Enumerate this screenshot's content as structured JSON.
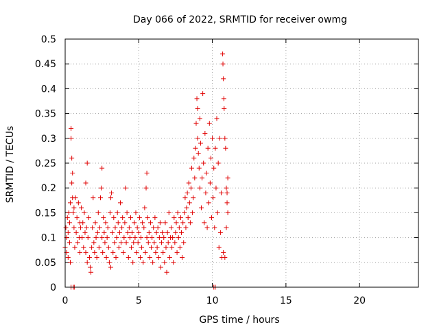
{
  "chart_data": {
    "type": "scatter",
    "title": "Day 066 of 2022, SRMTID for receiver owmg",
    "xlabel": "GPS time / hours",
    "ylabel": "SRMTID / TECUs",
    "xlim": [
      0,
      24
    ],
    "ylim": [
      0,
      0.5
    ],
    "xticks": [
      0,
      5,
      10,
      15,
      20
    ],
    "xtick_labels": [
      "0",
      "5",
      "10",
      "15",
      "20"
    ],
    "yticks": [
      0,
      0.05,
      0.1,
      0.15,
      0.2,
      0.25,
      0.3,
      0.35,
      0.4,
      0.45,
      0.5
    ],
    "ytick_labels": [
      "0",
      "0.05",
      "0.1",
      "0.15",
      "0.2",
      "0.25",
      "0.3",
      "0.35",
      "0.4",
      "0.45",
      "0.5"
    ],
    "grid": true,
    "marker": "plus",
    "color": "#e00000",
    "series": [
      {
        "points": [
          [
            0.0,
            0.08
          ],
          [
            0.05,
            0.12
          ],
          [
            0.1,
            0.1
          ],
          [
            0.1,
            0.07
          ],
          [
            0.15,
            0.14
          ],
          [
            0.2,
            0.11
          ],
          [
            0.2,
            0.06
          ],
          [
            0.25,
            0.15
          ],
          [
            0.3,
            0.09
          ],
          [
            0.3,
            0.13
          ],
          [
            0.35,
            0.17
          ],
          [
            0.35,
            0.05
          ],
          [
            0.4,
            0.32
          ],
          [
            0.4,
            0.3
          ],
          [
            0.45,
            0.26
          ],
          [
            0.45,
            0.21
          ],
          [
            0.5,
            0.23
          ],
          [
            0.5,
            0.18
          ],
          [
            0.55,
            0.15
          ],
          [
            0.6,
            0.12
          ],
          [
            0.6,
            0.16
          ],
          [
            0.65,
            0.08
          ],
          [
            0.7,
            0.18
          ],
          [
            0.75,
            0.11
          ],
          [
            0.8,
            0.14
          ],
          [
            0.85,
            0.09
          ],
          [
            0.9,
            0.17
          ],
          [
            0.95,
            0.1
          ],
          [
            1.0,
            0.13
          ],
          [
            1.0,
            0.07
          ],
          [
            1.05,
            0.12
          ],
          [
            1.1,
            0.16
          ],
          [
            1.15,
            0.1
          ],
          [
            1.2,
            0.13
          ],
          [
            1.25,
            0.08
          ],
          [
            1.3,
            0.15
          ],
          [
            1.35,
            0.11
          ],
          [
            1.4,
            0.21
          ],
          [
            1.4,
            0.07
          ],
          [
            1.45,
            0.12
          ],
          [
            1.5,
            0.25
          ],
          [
            1.5,
            0.05
          ],
          [
            1.55,
            0.1
          ],
          [
            1.6,
            0.14
          ],
          [
            1.65,
            0.06
          ],
          [
            1.7,
            0.04
          ],
          [
            1.75,
            0.03
          ],
          [
            1.8,
            0.08
          ],
          [
            1.85,
            0.12
          ],
          [
            1.9,
            0.18
          ],
          [
            1.95,
            0.09
          ],
          [
            2.0,
            0.07
          ],
          [
            2.05,
            0.13
          ],
          [
            2.1,
            0.1
          ],
          [
            2.15,
            0.06
          ],
          [
            2.2,
            0.11
          ],
          [
            2.25,
            0.15
          ],
          [
            2.3,
            0.08
          ],
          [
            2.35,
            0.12
          ],
          [
            2.4,
            0.18
          ],
          [
            2.45,
            0.2
          ],
          [
            2.5,
            0.24
          ],
          [
            2.5,
            0.1
          ],
          [
            2.55,
            0.07
          ],
          [
            2.6,
            0.14
          ],
          [
            2.65,
            0.11
          ],
          [
            2.7,
            0.09
          ],
          [
            2.75,
            0.13
          ],
          [
            2.8,
            0.06
          ],
          [
            2.85,
            0.1
          ],
          [
            2.9,
            0.12
          ],
          [
            2.95,
            0.08
          ],
          [
            3.0,
            0.05
          ],
          [
            3.05,
            0.15
          ],
          [
            3.1,
            0.18
          ],
          [
            3.1,
            0.04
          ],
          [
            3.15,
            0.19
          ],
          [
            3.2,
            0.11
          ],
          [
            3.25,
            0.07
          ],
          [
            3.3,
            0.14
          ],
          [
            3.35,
            0.09
          ],
          [
            3.4,
            0.12
          ],
          [
            3.45,
            0.06
          ],
          [
            3.5,
            0.1
          ],
          [
            3.55,
            0.15
          ],
          [
            3.6,
            0.13
          ],
          [
            3.65,
            0.08
          ],
          [
            3.7,
            0.11
          ],
          [
            3.75,
            0.17
          ],
          [
            3.8,
            0.09
          ],
          [
            3.85,
            0.12
          ],
          [
            3.9,
            0.14
          ],
          [
            3.95,
            0.07
          ],
          [
            4.0,
            0.1
          ],
          [
            4.05,
            0.13
          ],
          [
            4.1,
            0.2
          ],
          [
            4.15,
            0.09
          ],
          [
            4.2,
            0.15
          ],
          [
            4.25,
            0.11
          ],
          [
            4.3,
            0.06
          ],
          [
            4.35,
            0.12
          ],
          [
            4.4,
            0.1
          ],
          [
            4.45,
            0.14
          ],
          [
            4.5,
            0.08
          ],
          [
            4.55,
            0.11
          ],
          [
            4.6,
            0.05
          ],
          [
            4.65,
            0.09
          ],
          [
            4.7,
            0.13
          ],
          [
            4.75,
            0.1
          ],
          [
            4.8,
            0.15
          ],
          [
            4.85,
            0.07
          ],
          [
            4.9,
            0.12
          ],
          [
            4.95,
            0.09
          ],
          [
            5.0,
            0.11
          ],
          [
            5.05,
            0.14
          ],
          [
            5.1,
            0.06
          ],
          [
            5.15,
            0.1
          ],
          [
            5.2,
            0.08
          ],
          [
            5.25,
            0.13
          ],
          [
            5.3,
            0.05
          ],
          [
            5.35,
            0.12
          ],
          [
            5.4,
            0.16
          ],
          [
            5.45,
            0.07
          ],
          [
            5.5,
            0.2
          ],
          [
            5.55,
            0.23
          ],
          [
            5.55,
            0.1
          ],
          [
            5.6,
            0.14
          ],
          [
            5.65,
            0.09
          ],
          [
            5.7,
            0.11
          ],
          [
            5.75,
            0.06
          ],
          [
            5.8,
            0.13
          ],
          [
            5.85,
            0.08
          ],
          [
            5.9,
            0.1
          ],
          [
            5.95,
            0.05
          ],
          [
            6.0,
            0.12
          ],
          [
            6.05,
            0.09
          ],
          [
            6.1,
            0.14
          ],
          [
            6.15,
            0.07
          ],
          [
            6.2,
            0.11
          ],
          [
            6.25,
            0.08
          ],
          [
            6.3,
            0.12
          ],
          [
            6.35,
            0.06
          ],
          [
            6.4,
            0.1
          ],
          [
            6.45,
            0.13
          ],
          [
            6.5,
            0.04
          ],
          [
            6.55,
            0.09
          ],
          [
            6.6,
            0.11
          ],
          [
            6.65,
            0.07
          ],
          [
            6.7,
            0.1
          ],
          [
            6.75,
            0.05
          ],
          [
            6.8,
            0.13
          ],
          [
            6.85,
            0.08
          ],
          [
            6.9,
            0.03
          ],
          [
            6.95,
            0.11
          ],
          [
            7.0,
            0.09
          ],
          [
            7.05,
            0.15
          ],
          [
            7.1,
            0.06
          ],
          [
            7.15,
            0.1
          ],
          [
            7.2,
            0.12
          ],
          [
            7.25,
            0.08
          ],
          [
            7.3,
            0.1
          ],
          [
            7.35,
            0.05
          ],
          [
            7.4,
            0.14
          ],
          [
            7.45,
            0.09
          ],
          [
            7.5,
            0.11
          ],
          [
            7.55,
            0.13
          ],
          [
            7.6,
            0.07
          ],
          [
            7.65,
            0.15
          ],
          [
            7.7,
            0.1
          ],
          [
            7.75,
            0.12
          ],
          [
            7.8,
            0.08
          ],
          [
            7.85,
            0.14
          ],
          [
            7.9,
            0.11
          ],
          [
            7.95,
            0.06
          ],
          [
            8.0,
            0.13
          ],
          [
            8.05,
            0.09
          ],
          [
            8.1,
            0.15
          ],
          [
            8.15,
            0.18
          ],
          [
            8.2,
            0.12
          ],
          [
            8.25,
            0.16
          ],
          [
            8.3,
            0.19
          ],
          [
            8.35,
            0.14
          ],
          [
            8.4,
            0.21
          ],
          [
            8.45,
            0.17
          ],
          [
            8.5,
            0.13
          ],
          [
            8.55,
            0.2
          ],
          [
            8.6,
            0.24
          ],
          [
            8.65,
            0.15
          ],
          [
            8.7,
            0.18
          ],
          [
            8.75,
            0.26
          ],
          [
            8.8,
            0.22
          ],
          [
            8.85,
            0.28
          ],
          [
            8.9,
            0.33
          ],
          [
            8.95,
            0.38
          ],
          [
            9.0,
            0.3
          ],
          [
            9.0,
            0.36
          ],
          [
            9.05,
            0.27
          ],
          [
            9.1,
            0.24
          ],
          [
            9.15,
            0.34
          ],
          [
            9.15,
            0.2
          ],
          [
            9.2,
            0.29
          ],
          [
            9.25,
            0.16
          ],
          [
            9.3,
            0.22
          ],
          [
            9.35,
            0.39
          ],
          [
            9.4,
            0.25
          ],
          [
            9.45,
            0.13
          ],
          [
            9.5,
            0.31
          ],
          [
            9.55,
            0.19
          ],
          [
            9.6,
            0.23
          ],
          [
            9.65,
            0.12
          ],
          [
            9.7,
            0.28
          ],
          [
            9.75,
            0.17
          ],
          [
            9.8,
            0.33
          ],
          [
            9.85,
            0.21
          ],
          [
            9.9,
            0.26
          ],
          [
            9.95,
            0.14
          ],
          [
            10.0,
            0.3
          ],
          [
            10.05,
            0.18
          ],
          [
            10.1,
            0.24
          ],
          [
            10.15,
            0.12
          ],
          [
            10.2,
            0.28
          ],
          [
            10.25,
            0.2
          ],
          [
            10.3,
            0.34
          ],
          [
            10.35,
            0.15
          ],
          [
            10.4,
            0.25
          ],
          [
            10.45,
            0.08
          ],
          [
            10.5,
            0.3
          ],
          [
            10.55,
            0.11
          ],
          [
            10.6,
            0.19
          ],
          [
            10.65,
            0.06
          ],
          [
            10.7,
            0.47
          ],
          [
            10.72,
            0.45
          ],
          [
            10.75,
            0.42
          ],
          [
            10.78,
            0.38
          ],
          [
            10.8,
            0.36
          ],
          [
            10.85,
            0.3
          ],
          [
            10.9,
            0.28
          ],
          [
            10.95,
            0.2
          ],
          [
            11.0,
            0.17
          ],
          [
            11.05,
            0.15
          ],
          [
            10.75,
            0.07
          ],
          [
            10.85,
            0.06
          ],
          [
            10.95,
            0.12
          ],
          [
            11.0,
            0.19
          ],
          [
            11.05,
            0.22
          ],
          [
            0.4,
            0.0
          ],
          [
            0.55,
            0.0
          ],
          [
            0.62,
            0.0
          ],
          [
            10.1,
            0.0
          ],
          [
            10.2,
            0.0
          ]
        ]
      }
    ]
  }
}
